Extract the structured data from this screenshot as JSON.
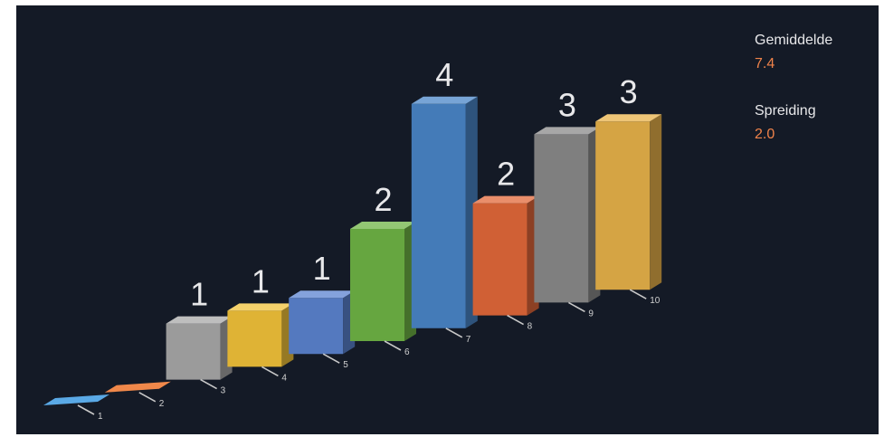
{
  "chart_data": {
    "type": "bar",
    "categories": [
      "1",
      "2",
      "3",
      "4",
      "5",
      "6",
      "7",
      "8",
      "9",
      "10"
    ],
    "values": [
      0,
      0,
      1,
      1,
      1,
      2,
      4,
      2,
      3,
      3
    ],
    "data_labels": [
      "",
      "",
      "1",
      "1",
      "1",
      "2",
      "4",
      "2",
      "3",
      "3"
    ],
    "colors": [
      "#5aa9e6",
      "#f0884a",
      "#a8a8a8",
      "#f2c33a",
      "#5b83d0",
      "#6fb446",
      "#4a86c8",
      "#e2683a",
      "#8a8a8a",
      "#e8b24a"
    ],
    "ylim": [
      0,
      4
    ],
    "legend": "none",
    "grid": false
  },
  "stats": {
    "mean_label": "Gemiddelde",
    "mean_value": "7.4",
    "spread_label": "Spreiding",
    "spread_value": "2.0"
  }
}
